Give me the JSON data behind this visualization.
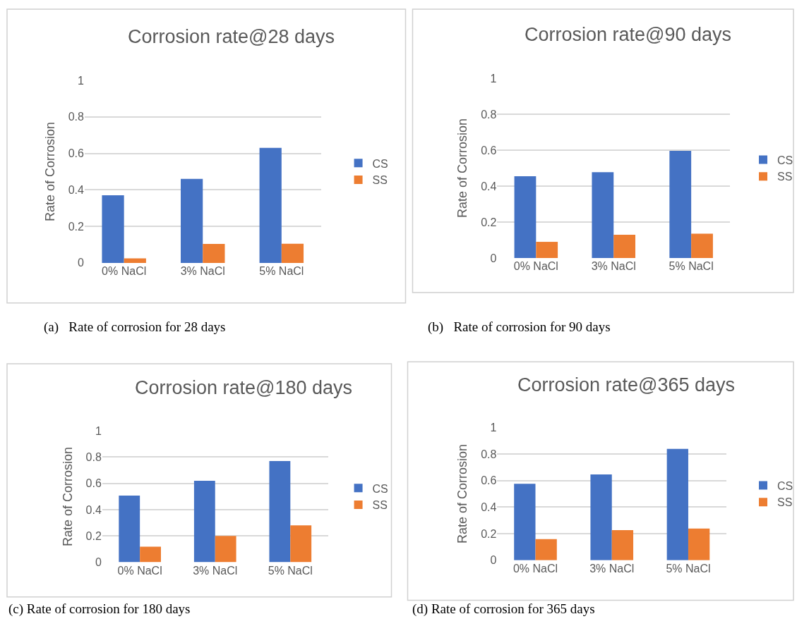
{
  "chart_data": [
    {
      "type": "bar",
      "title": "Corrosion rate@28 days",
      "ylabel": "Rate of Corrosion",
      "categories": [
        "0% NaCl",
        "3% NaCl",
        "5% NaCl"
      ],
      "series": [
        {
          "name": "CS",
          "color": "#4472c4",
          "values": [
            0.37,
            0.46,
            0.63
          ]
        },
        {
          "name": "SS",
          "color": "#ed7d31",
          "values": [
            0.025,
            0.104,
            0.105
          ]
        }
      ],
      "ylim": [
        0,
        1
      ],
      "yticks": [
        0,
        0.2,
        0.4,
        0.6,
        0.8,
        1
      ],
      "grid": "y",
      "legend": "right",
      "annotations": [
        "(a)   Rate of corrosion for 28 days"
      ]
    },
    {
      "type": "bar",
      "title": "Corrosion rate@90 days",
      "ylabel": "Rate of Corrosion",
      "categories": [
        "0% NaCl",
        "3% NaCl",
        "5% NaCl"
      ],
      "series": [
        {
          "name": "CS",
          "color": "#4472c4",
          "values": [
            0.455,
            0.477,
            0.596
          ]
        },
        {
          "name": "SS",
          "color": "#ed7d31",
          "values": [
            0.09,
            0.129,
            0.135
          ]
        }
      ],
      "ylim": [
        0,
        1
      ],
      "yticks": [
        0,
        0.2,
        0.4,
        0.6,
        0.8,
        1
      ],
      "grid": "y",
      "legend": "right",
      "annotations": [
        "(b)   Rate of corrosion for 90 days"
      ]
    },
    {
      "type": "bar",
      "title": "Corrosion rate@180 days",
      "ylabel": "Rate of Corrosion",
      "categories": [
        "0% NaCl",
        "3% NaCl",
        "5% NaCl"
      ],
      "series": [
        {
          "name": "CS",
          "color": "#4472c4",
          "values": [
            0.508,
            0.62,
            0.77
          ]
        },
        {
          "name": "SS",
          "color": "#ed7d31",
          "values": [
            0.119,
            0.2,
            0.281
          ]
        }
      ],
      "ylim": [
        0,
        1
      ],
      "yticks": [
        0,
        0.2,
        0.4,
        0.6,
        0.8,
        1
      ],
      "grid": "y",
      "legend": "right",
      "annotations": [
        "(c) Rate of corrosion for 180 days"
      ]
    },
    {
      "type": "bar",
      "title": "Corrosion rate@365 days",
      "ylabel": "Rate of Corrosion",
      "categories": [
        "0% NaCl",
        "3% NaCl",
        "5% NaCl"
      ],
      "series": [
        {
          "name": "CS",
          "color": "#4472c4",
          "values": [
            0.575,
            0.646,
            0.838
          ]
        },
        {
          "name": "SS",
          "color": "#ed7d31",
          "values": [
            0.159,
            0.226,
            0.239
          ]
        }
      ],
      "ylim": [
        0,
        1
      ],
      "yticks": [
        0,
        0.2,
        0.4,
        0.6,
        0.8,
        1
      ],
      "grid": "y",
      "legend": "right",
      "annotations": [
        "(d) Rate of corrosion for 365 days"
      ]
    }
  ]
}
